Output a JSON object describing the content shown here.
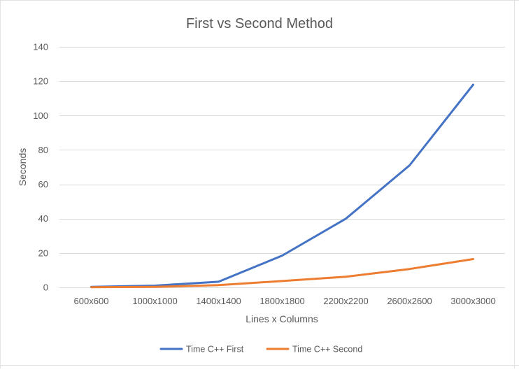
{
  "chart_data": {
    "type": "line",
    "title": "First vs Second Method",
    "xlabel": "Lines x Columns",
    "ylabel": "Seconds",
    "categories": [
      "600x600",
      "1000x1000",
      "1400x1400",
      "1800x1800",
      "2200x2200",
      "2600x2600",
      "3000x3000"
    ],
    "ylim": [
      0,
      140
    ],
    "yticks": [
      0,
      20,
      40,
      60,
      80,
      100,
      120,
      140
    ],
    "grid": true,
    "legend_position": "bottom",
    "series": [
      {
        "name": "Time C++ First",
        "color": "#4472C4",
        "values": [
          0.3,
          1.0,
          3.3,
          18.5,
          40,
          71,
          118
        ]
      },
      {
        "name": "Time C++ Second",
        "color": "#ED7D31",
        "values": [
          0.1,
          0.3,
          1.3,
          3.7,
          6.2,
          10.7,
          16.5
        ]
      }
    ]
  }
}
